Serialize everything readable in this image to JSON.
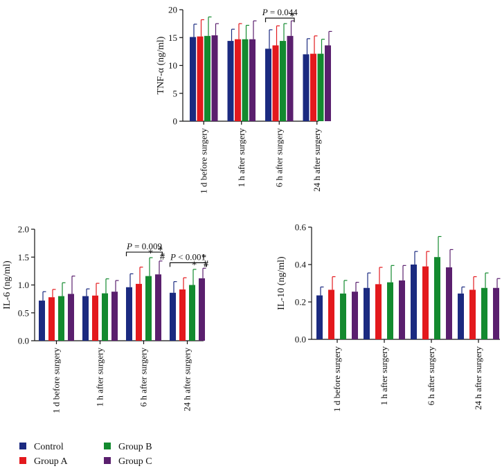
{
  "colors": {
    "Control": "#1b2a80",
    "Group A": "#e3191d",
    "Group B": "#138a2f",
    "Group C": "#5a1f6e"
  },
  "legend": [
    "Control",
    "Group A",
    "Group B",
    "Group C"
  ],
  "chart_data": [
    {
      "id": "tnf",
      "type": "bar",
      "ylabel": "TNF-α (ng/ml)",
      "ylim": [
        0,
        20
      ],
      "yticks": [
        "0",
        "5",
        "10",
        "15",
        "20"
      ],
      "categories": [
        "1 d before surgery",
        "1 h after surgery",
        "6 h after surgery",
        "24 h after surgery"
      ],
      "series": [
        {
          "name": "Control",
          "values": [
            15.1,
            14.4,
            13.0,
            12.0
          ],
          "errors": [
            2.3,
            2.1,
            3.4,
            2.8
          ]
        },
        {
          "name": "Group A",
          "values": [
            15.2,
            14.7,
            13.6,
            12.1
          ],
          "errors": [
            3.0,
            2.8,
            3.5,
            3.2
          ]
        },
        {
          "name": "Group B",
          "values": [
            15.3,
            14.7,
            14.4,
            12.1
          ],
          "errors": [
            3.4,
            2.5,
            3.1,
            2.6
          ]
        },
        {
          "name": "Group C",
          "values": [
            15.4,
            14.7,
            15.3,
            13.6
          ],
          "errors": [
            2.1,
            3.3,
            2.7,
            2.5
          ]
        }
      ],
      "annotations": [
        {
          "type": "bracket",
          "category": 2,
          "from": 0,
          "to": 3,
          "label": "P = 0.044"
        },
        {
          "type": "mark",
          "category": 2,
          "series": 3,
          "label": "*"
        }
      ]
    },
    {
      "id": "il6",
      "type": "bar",
      "ylabel": "IL-6 (ng/ml)",
      "ylim": [
        0,
        2.0
      ],
      "yticks": [
        "0.0",
        "0.5",
        "1.0",
        "1.5",
        "2.0"
      ],
      "categories": [
        "1 d before surgery",
        "1 h after surgery",
        "6 h after surgery",
        "24 h after surgery"
      ],
      "series": [
        {
          "name": "Control",
          "values": [
            0.72,
            0.8,
            0.96,
            0.86
          ],
          "errors": [
            0.16,
            0.13,
            0.24,
            0.2
          ]
        },
        {
          "name": "Group A",
          "values": [
            0.78,
            0.81,
            1.02,
            0.92
          ],
          "errors": [
            0.14,
            0.22,
            0.3,
            0.21
          ]
        },
        {
          "name": "Group B",
          "values": [
            0.8,
            0.85,
            1.16,
            1.0
          ],
          "errors": [
            0.24,
            0.26,
            0.33,
            0.28
          ]
        },
        {
          "name": "Group C",
          "values": [
            0.84,
            0.88,
            1.19,
            1.12
          ],
          "errors": [
            0.32,
            0.2,
            0.24,
            0.18
          ]
        }
      ],
      "annotations": [
        {
          "type": "bracket",
          "category": 2,
          "from": 0,
          "to": 3,
          "label": "P = 0.009"
        },
        {
          "type": "bracket",
          "category": 3,
          "from": 0,
          "to": 3,
          "label": "P < 0.001"
        },
        {
          "type": "mark",
          "category": 2,
          "series": 2,
          "label": "*"
        },
        {
          "type": "mark",
          "category": 2,
          "series": 3,
          "label": "*#"
        },
        {
          "type": "mark",
          "category": 3,
          "series": 2,
          "label": "*"
        },
        {
          "type": "mark",
          "category": 3,
          "series": 3,
          "label": "*#"
        }
      ]
    },
    {
      "id": "il10",
      "type": "bar",
      "ylabel": "IL-10 (ng/ml)",
      "ylim": [
        0,
        0.6
      ],
      "yticks": [
        "0.0",
        "0.2",
        "0.4",
        "0.6"
      ],
      "categories": [
        "1 d before surgery",
        "1 h after surgery",
        "6 h after surgery",
        "24 h after surgery"
      ],
      "series": [
        {
          "name": "Control",
          "values": [
            0.235,
            0.275,
            0.4,
            0.245
          ],
          "errors": [
            0.045,
            0.08,
            0.07,
            0.035
          ]
        },
        {
          "name": "Group A",
          "values": [
            0.265,
            0.295,
            0.39,
            0.265
          ],
          "errors": [
            0.07,
            0.09,
            0.08,
            0.07
          ]
        },
        {
          "name": "Group B",
          "values": [
            0.245,
            0.305,
            0.44,
            0.275
          ],
          "errors": [
            0.07,
            0.09,
            0.11,
            0.08
          ]
        },
        {
          "name": "Group C",
          "values": [
            0.255,
            0.315,
            0.385,
            0.275
          ],
          "errors": [
            0.05,
            0.08,
            0.095,
            0.05
          ]
        }
      ],
      "annotations": []
    }
  ]
}
